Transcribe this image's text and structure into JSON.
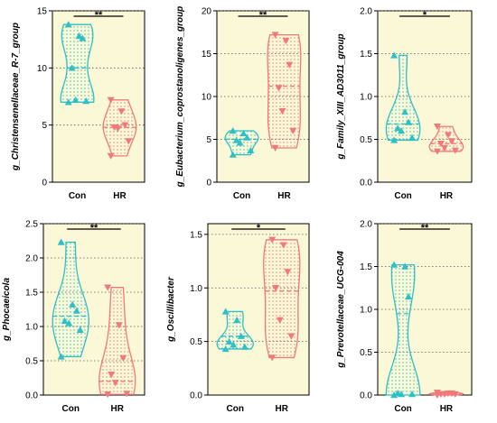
{
  "colors": {
    "background": "#fbf8d8",
    "con": "#2fbfc6",
    "hr": "#f07a7a",
    "grid": "#555555",
    "axis": "#000000"
  },
  "chart_data": [
    {
      "type": "violin",
      "ylabel": "g_Christensenellaceae_R-7_group",
      "ylim": [
        0,
        15
      ],
      "yticks": [
        0,
        5,
        10,
        15
      ],
      "categories": [
        "Con",
        "HR"
      ],
      "significance": "**",
      "series": [
        {
          "values": [
            13.8,
            12.8,
            12.6,
            10.0,
            7.2,
            7.1,
            7.0
          ],
          "median": 10.0
        },
        {
          "values": [
            7.2,
            6.2,
            5.0,
            4.8,
            4.7,
            3.6,
            2.3
          ],
          "median": 4.8
        }
      ]
    },
    {
      "type": "violin",
      "ylabel": "g_Eubacterium_coprostanoligenes_group",
      "ylim": [
        0,
        20
      ],
      "yticks": [
        0,
        5,
        10,
        15,
        20
      ],
      "categories": [
        "Con",
        "HR"
      ],
      "significance": "**",
      "series": [
        {
          "values": [
            6.0,
            5.7,
            5.2,
            4.9,
            4.6,
            3.7,
            3.2
          ],
          "median": 5.0
        },
        {
          "values": [
            17.2,
            16.5,
            13.7,
            11.0,
            8.3,
            6.0,
            4.0
          ],
          "median": 11.2
        }
      ]
    },
    {
      "type": "violin",
      "ylabel": "g_Family_XIII_AD3011_group",
      "ylim": [
        0,
        2.0
      ],
      "yticks": [
        0,
        0.5,
        1.0,
        1.5,
        2.0
      ],
      "categories": [
        "Con",
        "HR"
      ],
      "significance": "*",
      "series": [
        {
          "values": [
            1.48,
            0.82,
            0.7,
            0.63,
            0.6,
            0.52,
            0.49
          ],
          "median": 0.68
        },
        {
          "values": [
            0.65,
            0.55,
            0.48,
            0.45,
            0.4,
            0.37,
            0.36
          ],
          "median": 0.45
        }
      ]
    },
    {
      "type": "violin",
      "ylabel": "g_Phocaeicola",
      "ylim": [
        0,
        2.5
      ],
      "yticks": [
        0,
        0.5,
        1.0,
        1.5,
        2.0,
        2.5
      ],
      "categories": [
        "Con",
        "HR"
      ],
      "significance": "**",
      "series": [
        {
          "values": [
            2.23,
            1.32,
            1.23,
            1.08,
            1.05,
            0.95,
            0.56
          ],
          "median": 1.15
        },
        {
          "values": [
            1.57,
            1.02,
            0.54,
            0.3,
            0.18,
            0.02,
            0.01
          ],
          "median": 0.2
        }
      ]
    },
    {
      "type": "violin",
      "ylabel": "g_Oscillibacter",
      "ylim": [
        0,
        1.6
      ],
      "yticks": [
        0,
        0.5,
        1.0,
        1.5
      ],
      "categories": [
        "Con",
        "HR"
      ],
      "significance": "*",
      "series": [
        {
          "values": [
            0.78,
            0.7,
            0.55,
            0.5,
            0.47,
            0.45,
            0.43
          ],
          "median": 0.55
        },
        {
          "values": [
            1.45,
            1.4,
            1.15,
            1.0,
            0.7,
            0.55,
            0.35
          ],
          "median": 0.97
        }
      ]
    },
    {
      "type": "violin",
      "ylabel": "g_Prevotellaceae_UCG-004",
      "ylim": [
        0,
        2.0
      ],
      "yticks": [
        0,
        0.5,
        1.0,
        1.5,
        2.0
      ],
      "categories": [
        "Con",
        "HR"
      ],
      "significance": "**",
      "series": [
        {
          "values": [
            1.52,
            1.5,
            1.15,
            0.02,
            0.01,
            0.01,
            0.0
          ],
          "median": 0.95
        },
        {
          "values": [
            0.03,
            0.02,
            0.02,
            0.01,
            0.01,
            0.01,
            0.0
          ],
          "median": 0.01
        }
      ]
    }
  ]
}
